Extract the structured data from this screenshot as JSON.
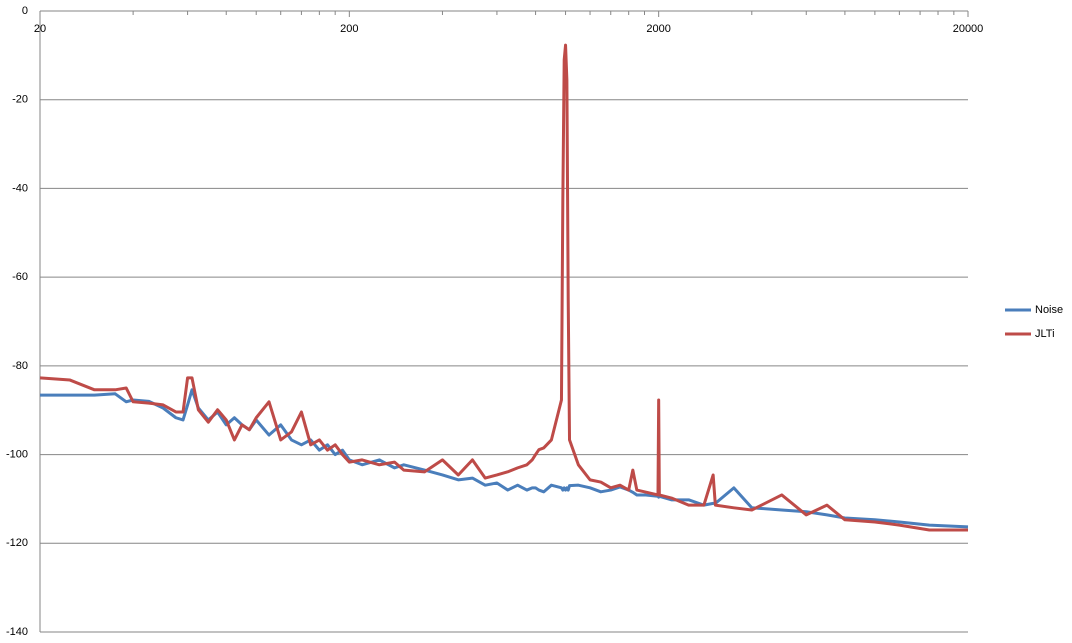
{
  "chart_data": {
    "type": "line",
    "x": [
      20,
      25,
      30,
      35,
      38,
      40,
      45,
      50,
      55,
      58,
      60,
      62,
      65,
      70,
      75,
      80,
      85,
      90,
      95,
      100,
      110,
      120,
      130,
      140,
      150,
      160,
      170,
      180,
      190,
      200,
      220,
      250,
      280,
      300,
      350,
      400,
      450,
      500,
      550,
      600,
      650,
      700,
      750,
      780,
      800,
      820,
      850,
      900,
      970,
      980,
      990,
      1000,
      1010,
      1020,
      1030,
      1100,
      1200,
      1300,
      1400,
      1500,
      1600,
      1650,
      1700,
      1800,
      1990,
      2000,
      2010,
      2200,
      2500,
      2800,
      3000,
      3050,
      3500,
      4000,
      5000,
      6000,
      7000,
      8000,
      10000,
      12000,
      15000,
      20000
    ],
    "series": [
      {
        "name": "Noise",
        "color": "#4a7ebb",
        "values": [
          -86.6,
          -86.6,
          -86.6,
          -86.3,
          -88.1,
          -87.7,
          -88,
          -89.5,
          -91.7,
          -92.2,
          -88.8,
          -85.4,
          -89.5,
          -92.2,
          -90.4,
          -93.3,
          -91.7,
          -93.3,
          -94.4,
          -92.2,
          -95.6,
          -93.3,
          -96.7,
          -97.8,
          -96.7,
          -99,
          -97.8,
          -100,
          -99,
          -101.2,
          -102.3,
          -101.2,
          -103,
          -102.3,
          -103.5,
          -104.6,
          -105.7,
          -105.3,
          -106.9,
          -106.4,
          -108,
          -106.9,
          -108,
          -107.5,
          -107.5,
          -108,
          -108.4,
          -106.9,
          -107.5,
          -108,
          -107.5,
          -108,
          -107.5,
          -108,
          -107,
          -106.9,
          -107.5,
          -108.4,
          -108,
          -107.3,
          -108,
          -108.5,
          -109.1,
          -109.1,
          -109.4,
          -109.6,
          -109.4,
          -110.2,
          -110.2,
          -111.4,
          -111,
          -111,
          -107.5,
          -112,
          -112.5,
          -112.9,
          -113.6,
          -114.3,
          -114.7,
          -115.2,
          -115.9,
          -116.3
        ]
      },
      {
        "name": "JLTi",
        "color": "#be4b48",
        "values": [
          -82.7,
          -83.2,
          -85.4,
          -85.4,
          -85,
          -88.1,
          -88.4,
          -88.8,
          -90.4,
          -90.4,
          -82.7,
          -82.7,
          -89.9,
          -92.7,
          -89.9,
          -92.2,
          -96.7,
          -93.3,
          -94.4,
          -91.7,
          -88.1,
          -96.7,
          -94.9,
          -90.4,
          -97.8,
          -96.7,
          -99,
          -97.8,
          -100,
          -101.7,
          -101.2,
          -102.3,
          -101.7,
          -103.5,
          -103.9,
          -101.2,
          -104.6,
          -101.2,
          -105.3,
          -104.6,
          -103.9,
          -103,
          -102.3,
          -101.2,
          -100,
          -98.9,
          -98.5,
          -96.7,
          -87.7,
          -42.6,
          -11,
          -7.7,
          -15.6,
          -65.1,
          -96.7,
          -102.3,
          -105.7,
          -106.2,
          -107.5,
          -106.9,
          -108,
          -103.5,
          -108,
          -108.4,
          -109.1,
          -87.7,
          -109.1,
          -109.8,
          -111.4,
          -111.4,
          -104.6,
          -111.4,
          -112,
          -112.5,
          -109.1,
          -113.6,
          -111.4,
          -114.7,
          -115.2,
          -115.9,
          -117,
          -117
        ]
      }
    ],
    "xlim": [
      20,
      20000
    ],
    "xticks": [
      20,
      200,
      2000,
      20000
    ],
    "x_minor_ticks": [
      40,
      60,
      80,
      100,
      120,
      140,
      160,
      180,
      400,
      600,
      800,
      1000,
      1200,
      1400,
      1600,
      1800,
      4000,
      6000,
      8000,
      10000,
      12000,
      14000,
      16000,
      18000
    ],
    "x_log": true,
    "x_axis_position": "top",
    "ylim": [
      -140,
      0
    ],
    "yticks": [
      0,
      -20,
      -40,
      -60,
      -80,
      -100,
      -120,
      -140
    ],
    "grid": true,
    "legend": "right"
  }
}
